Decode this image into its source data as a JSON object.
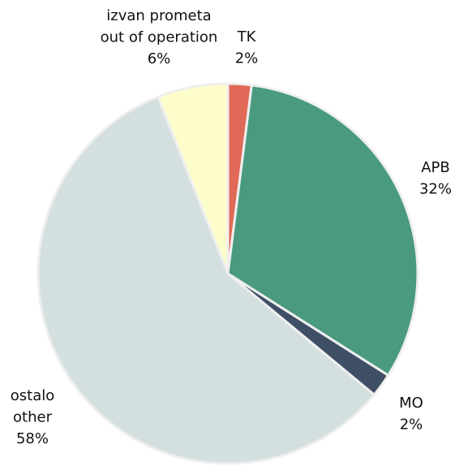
{
  "chart_data": {
    "type": "pie",
    "categories": [
      [
        "TK"
      ],
      [
        "APB"
      ],
      [
        "MO"
      ],
      [
        "ostalo",
        "other"
      ],
      [
        "izvan prometa",
        "out of operation"
      ]
    ],
    "values": [
      2,
      32,
      2,
      58,
      6
    ],
    "value_labels": [
      "2%",
      "32%",
      "2%",
      "58%",
      "6%"
    ],
    "colors": [
      "#e06a57",
      "#4a9a80",
      "#3f4f66",
      "#d4dfdf",
      "#fdfdcc"
    ],
    "start_angle": 90,
    "direction": "clockwise"
  }
}
